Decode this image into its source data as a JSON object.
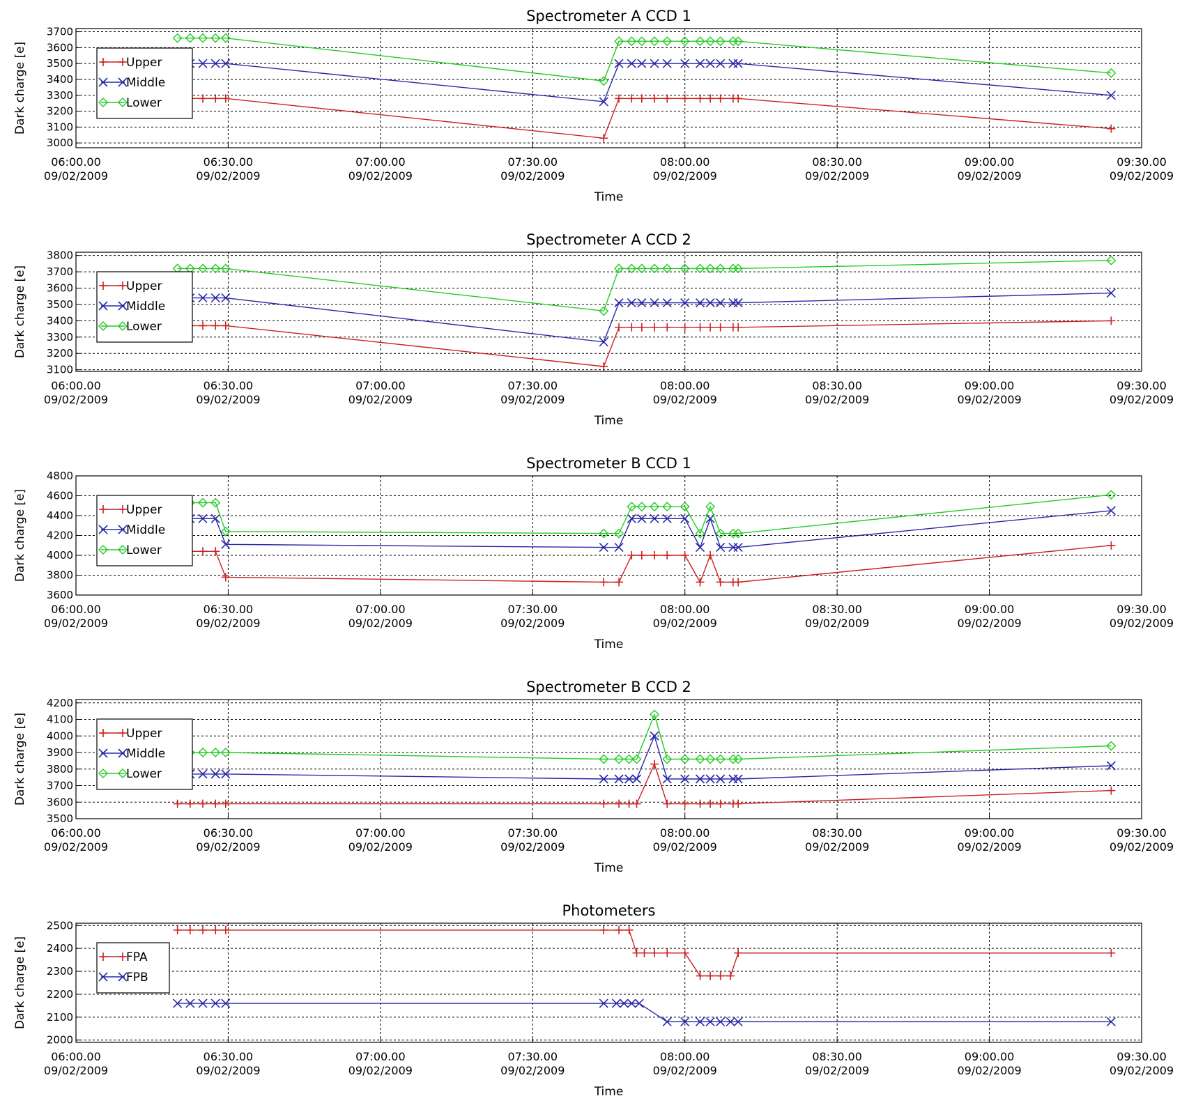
{
  "colors": {
    "Upper": "#cc1f1f",
    "Middle": "#2828a8",
    "Lower": "#22cc22",
    "FPA": "#cc1f1f",
    "FPB": "#2828a8",
    "grid": "#000000",
    "frame": "#000000"
  },
  "x_axis": {
    "label": "Time",
    "range": [
      "06:00",
      "09:30"
    ],
    "ticks": [
      {
        "value": "06:00",
        "line1": "06:00.00",
        "line2": "09/02/2009"
      },
      {
        "value": "06:30",
        "line1": "06:30.00",
        "line2": "09/02/2009"
      },
      {
        "value": "07:00",
        "line1": "07:00.00",
        "line2": "09/02/2009"
      },
      {
        "value": "07:30",
        "line1": "07:30.00",
        "line2": "09/02/2009"
      },
      {
        "value": "08:00",
        "line1": "08:00.00",
        "line2": "09/02/2009"
      },
      {
        "value": "08:30",
        "line1": "08:30.00",
        "line2": "09/02/2009"
      },
      {
        "value": "09:00",
        "line1": "09:00.00",
        "line2": "09/02/2009"
      },
      {
        "value": "09:30",
        "line1": "09:30.00",
        "line2": "09/02/2009"
      }
    ]
  },
  "chart_data": [
    {
      "type": "line",
      "title": "Spectrometer A CCD 1",
      "xlabel": "Time",
      "ylabel": "Dark charge [e]",
      "ylim": [
        2970,
        3720
      ],
      "yticks": [
        3000,
        3100,
        3200,
        3300,
        3400,
        3500,
        3600,
        3700
      ],
      "grid": true,
      "legend": "upper-left",
      "series": [
        {
          "name": "Upper",
          "marker": "plus",
          "x": [
            "06:20",
            "06:22.5",
            "06:25",
            "06:27.5",
            "06:29.5",
            "07:44",
            "07:47",
            "07:49.5",
            "07:51.5",
            "07:54",
            "07:56.5",
            "08:00",
            "08:03",
            "08:05",
            "08:07",
            "08:09.5",
            "08:10.5",
            "09:24"
          ],
          "y": [
            3280,
            3280,
            3280,
            3280,
            3280,
            3030,
            3280,
            3280,
            3280,
            3280,
            3280,
            3280,
            3280,
            3280,
            3280,
            3280,
            3280,
            3090
          ]
        },
        {
          "name": "Middle",
          "marker": "x",
          "x": [
            "06:20",
            "06:22.5",
            "06:25",
            "06:27.5",
            "06:29.5",
            "07:44",
            "07:47",
            "07:49.5",
            "07:51.5",
            "07:54",
            "07:56.5",
            "08:00",
            "08:03",
            "08:05",
            "08:07",
            "08:09.5",
            "08:10.5",
            "09:24"
          ],
          "y": [
            3500,
            3500,
            3500,
            3500,
            3500,
            3260,
            3500,
            3500,
            3500,
            3500,
            3500,
            3500,
            3500,
            3500,
            3500,
            3500,
            3500,
            3300
          ]
        },
        {
          "name": "Lower",
          "marker": "diamond",
          "x": [
            "06:20",
            "06:22.5",
            "06:25",
            "06:27.5",
            "06:29.5",
            "07:44",
            "07:47",
            "07:49.5",
            "07:51.5",
            "07:54",
            "07:56.5",
            "08:00",
            "08:03",
            "08:05",
            "08:07",
            "08:09.5",
            "08:10.5",
            "09:24"
          ],
          "y": [
            3660,
            3660,
            3660,
            3660,
            3660,
            3390,
            3640,
            3640,
            3640,
            3640,
            3640,
            3640,
            3640,
            3640,
            3640,
            3640,
            3640,
            3440
          ]
        }
      ]
    },
    {
      "type": "line",
      "title": "Spectrometer A CCD 2",
      "xlabel": "Time",
      "ylabel": "Dark charge [e]",
      "ylim": [
        3090,
        3820
      ],
      "yticks": [
        3100,
        3200,
        3300,
        3400,
        3500,
        3600,
        3700,
        3800
      ],
      "grid": true,
      "legend": "upper-left",
      "series": [
        {
          "name": "Upper",
          "marker": "plus",
          "x": [
            "06:20",
            "06:22.5",
            "06:25",
            "06:27.5",
            "06:29.5",
            "07:44",
            "07:47",
            "07:49.5",
            "07:51.5",
            "07:54",
            "07:56.5",
            "08:00",
            "08:03",
            "08:05",
            "08:07",
            "08:09.5",
            "08:10.5",
            "09:24"
          ],
          "y": [
            3370,
            3370,
            3370,
            3370,
            3370,
            3120,
            3360,
            3360,
            3360,
            3360,
            3360,
            3360,
            3360,
            3360,
            3360,
            3360,
            3360,
            3400
          ]
        },
        {
          "name": "Middle",
          "marker": "x",
          "x": [
            "06:20",
            "06:22.5",
            "06:25",
            "06:27.5",
            "06:29.5",
            "07:44",
            "07:47",
            "07:49.5",
            "07:51.5",
            "07:54",
            "07:56.5",
            "08:00",
            "08:03",
            "08:05",
            "08:07",
            "08:09.5",
            "08:10.5",
            "09:24"
          ],
          "y": [
            3540,
            3540,
            3540,
            3540,
            3540,
            3270,
            3510,
            3510,
            3510,
            3510,
            3510,
            3510,
            3510,
            3510,
            3510,
            3510,
            3510,
            3570
          ]
        },
        {
          "name": "Lower",
          "marker": "diamond",
          "x": [
            "06:20",
            "06:22.5",
            "06:25",
            "06:27.5",
            "06:29.5",
            "07:44",
            "07:47",
            "07:49.5",
            "07:51.5",
            "07:54",
            "07:56.5",
            "08:00",
            "08:03",
            "08:05",
            "08:07",
            "08:09.5",
            "08:10.5",
            "09:24"
          ],
          "y": [
            3720,
            3720,
            3720,
            3720,
            3720,
            3460,
            3720,
            3720,
            3720,
            3720,
            3720,
            3720,
            3720,
            3720,
            3720,
            3720,
            3720,
            3770
          ]
        }
      ]
    },
    {
      "type": "line",
      "title": "Spectrometer B CCD 1",
      "xlabel": "Time",
      "ylabel": "Dark charge [e]",
      "ylim": [
        3600,
        4800
      ],
      "yticks": [
        3600,
        3800,
        4000,
        4200,
        4400,
        4600,
        4800
      ],
      "grid": true,
      "legend": "upper-left",
      "series": [
        {
          "name": "Upper",
          "marker": "plus",
          "x": [
            "06:20",
            "06:22.5",
            "06:25",
            "06:27.5",
            "06:29.5",
            "07:44",
            "07:47",
            "07:49.5",
            "07:51.5",
            "07:54",
            "07:56.5",
            "08:00",
            "08:03",
            "08:05",
            "08:07",
            "08:09.5",
            "08:10.5",
            "09:24"
          ],
          "y": [
            4040,
            4040,
            4040,
            4040,
            3780,
            3730,
            3730,
            4000,
            4000,
            4000,
            4000,
            4000,
            3730,
            4000,
            3730,
            3730,
            3730,
            4100
          ]
        },
        {
          "name": "Middle",
          "marker": "x",
          "x": [
            "06:20",
            "06:22.5",
            "06:25",
            "06:27.5",
            "06:29.5",
            "07:44",
            "07:47",
            "07:49.5",
            "07:51.5",
            "07:54",
            "07:56.5",
            "08:00",
            "08:03",
            "08:05",
            "08:07",
            "08:09.5",
            "08:10.5",
            "09:24"
          ],
          "y": [
            4370,
            4370,
            4370,
            4370,
            4110,
            4080,
            4080,
            4370,
            4370,
            4370,
            4370,
            4370,
            4080,
            4370,
            4080,
            4080,
            4080,
            4450
          ]
        },
        {
          "name": "Lower",
          "marker": "diamond",
          "x": [
            "06:20",
            "06:22.5",
            "06:25",
            "06:27.5",
            "06:29.5",
            "07:44",
            "07:47",
            "07:49.5",
            "07:51.5",
            "07:54",
            "07:56.5",
            "08:00",
            "08:03",
            "08:05",
            "08:07",
            "08:09.5",
            "08:10.5",
            "09:24"
          ],
          "y": [
            4530,
            4530,
            4530,
            4530,
            4240,
            4220,
            4220,
            4490,
            4490,
            4490,
            4490,
            4490,
            4220,
            4490,
            4220,
            4220,
            4220,
            4610
          ]
        }
      ]
    },
    {
      "type": "line",
      "title": "Spectrometer B CCD 2",
      "xlabel": "Time",
      "ylabel": "Dark charge [e]",
      "ylim": [
        3500,
        4220
      ],
      "yticks": [
        3500,
        3600,
        3700,
        3800,
        3900,
        4000,
        4100,
        4200
      ],
      "grid": true,
      "legend": "upper-left",
      "series": [
        {
          "name": "Upper",
          "marker": "plus",
          "x": [
            "06:20",
            "06:22.5",
            "06:25",
            "06:27.5",
            "06:29.5",
            "07:44",
            "07:47",
            "07:49",
            "07:50.5",
            "07:54",
            "07:56.5",
            "08:00",
            "08:03",
            "08:05",
            "08:07",
            "08:09.5",
            "08:10.5",
            "09:24"
          ],
          "y": [
            3590,
            3590,
            3590,
            3590,
            3590,
            3590,
            3590,
            3590,
            3590,
            3830,
            3590,
            3590,
            3590,
            3590,
            3590,
            3590,
            3590,
            3670
          ]
        },
        {
          "name": "Middle",
          "marker": "x",
          "x": [
            "06:20",
            "06:22.5",
            "06:25",
            "06:27.5",
            "06:29.5",
            "07:44",
            "07:47",
            "07:49",
            "07:50.5",
            "07:54",
            "07:56.5",
            "08:00",
            "08:03",
            "08:05",
            "08:07",
            "08:09.5",
            "08:10.5",
            "09:24"
          ],
          "y": [
            3770,
            3770,
            3770,
            3770,
            3770,
            3740,
            3740,
            3740,
            3740,
            4000,
            3740,
            3740,
            3740,
            3740,
            3740,
            3740,
            3740,
            3820
          ]
        },
        {
          "name": "Lower",
          "marker": "diamond",
          "x": [
            "06:20",
            "06:22.5",
            "06:25",
            "06:27.5",
            "06:29.5",
            "07:44",
            "07:47",
            "07:49",
            "07:50.5",
            "07:54",
            "07:56.5",
            "08:00",
            "08:03",
            "08:05",
            "08:07",
            "08:09.5",
            "08:10.5",
            "09:24"
          ],
          "y": [
            3900,
            3900,
            3900,
            3900,
            3900,
            3860,
            3860,
            3860,
            3860,
            4130,
            3860,
            3860,
            3860,
            3860,
            3860,
            3860,
            3860,
            3940
          ]
        }
      ]
    },
    {
      "type": "line",
      "title": "Photometers",
      "xlabel": "Time",
      "ylabel": "Dark charge [e]",
      "ylim": [
        1990,
        2510
      ],
      "yticks": [
        2000,
        2100,
        2200,
        2300,
        2400,
        2500
      ],
      "grid": true,
      "legend": "upper-left",
      "series": [
        {
          "name": "FPA",
          "marker": "plus",
          "x": [
            "06:20",
            "06:22.5",
            "06:25",
            "06:27.5",
            "06:29.5",
            "07:44",
            "07:47",
            "07:49",
            "07:50.5",
            "07:52",
            "07:54",
            "07:56.5",
            "08:00",
            "08:03",
            "08:05",
            "08:07",
            "08:09",
            "08:10.5",
            "09:24"
          ],
          "y": [
            2480,
            2480,
            2480,
            2480,
            2480,
            2480,
            2480,
            2480,
            2380,
            2380,
            2380,
            2380,
            2380,
            2280,
            2280,
            2280,
            2280,
            2380,
            2380
          ]
        },
        {
          "name": "FPB",
          "marker": "x",
          "x": [
            "06:20",
            "06:22.5",
            "06:25",
            "06:27.5",
            "06:29.5",
            "07:44",
            "07:46.5",
            "07:48",
            "07:49.5",
            "07:51",
            "07:56.5",
            "08:00",
            "08:03",
            "08:05",
            "08:07",
            "08:09",
            "08:10.5",
            "09:24"
          ],
          "y": [
            2160,
            2160,
            2160,
            2160,
            2160,
            2160,
            2160,
            2160,
            2160,
            2160,
            2080,
            2080,
            2080,
            2080,
            2080,
            2080,
            2080,
            2080
          ]
        }
      ]
    }
  ]
}
